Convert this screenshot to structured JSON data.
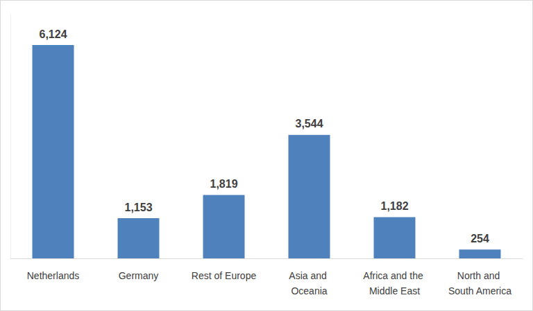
{
  "chart_data": {
    "type": "bar",
    "categories": [
      "Netherlands",
      "Germany",
      "Rest of Europe",
      "Asia and Oceania",
      "Africa and the Middle East",
      "North and South America"
    ],
    "values": [
      6124,
      1153,
      1819,
      3544,
      1182,
      254
    ],
    "value_labels": [
      "6,124",
      "1,153",
      "1,819",
      "3,544",
      "1,182",
      "254"
    ],
    "color": "#4f81bd",
    "ylim": [
      0,
      7000
    ],
    "grid": false,
    "data_labels": true,
    "tick_labels": "x"
  }
}
